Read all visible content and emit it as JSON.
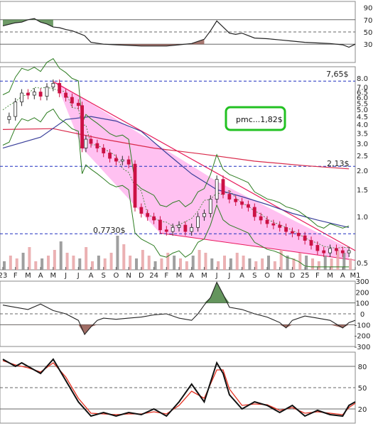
{
  "chart_data": [
    {
      "type": "line",
      "panel": "top-oscillator",
      "y_ticks": [
        "90",
        "70",
        "50",
        "30"
      ],
      "ylim": [
        0,
        100
      ],
      "levels": [
        70,
        50,
        30
      ],
      "grid": true,
      "series": [
        {
          "values": [
            [
              0,
              60
            ],
            [
              1,
              65
            ],
            [
              1.5,
              66
            ],
            [
              2,
              70
            ],
            [
              2.5,
              72
            ],
            [
              3,
              66
            ],
            [
              3.5,
              63
            ],
            [
              4,
              58
            ],
            [
              4.5,
              57
            ],
            [
              5,
              54
            ],
            [
              5.5,
              52
            ],
            [
              6,
              48
            ],
            [
              6.5,
              44
            ],
            [
              7,
              33
            ],
            [
              8,
              30
            ],
            [
              9,
              29
            ],
            [
              10,
              28
            ],
            [
              11,
              27
            ],
            [
              12,
              27
            ],
            [
              13,
              27
            ],
            [
              14,
              29
            ],
            [
              15,
              31
            ],
            [
              16,
              38
            ],
            [
              16.5,
              52
            ],
            [
              17,
              68
            ],
            [
              17.5,
              58
            ],
            [
              18,
              48
            ],
            [
              18.5,
              46
            ],
            [
              19,
              48
            ],
            [
              20,
              40
            ],
            [
              21,
              39
            ],
            [
              22,
              37
            ],
            [
              23,
              35
            ],
            [
              24,
              33
            ],
            [
              25,
              32
            ],
            [
              26,
              31
            ],
            [
              27,
              29
            ],
            [
              27.5,
              25
            ],
            [
              28,
              30
            ]
          ]
        }
      ]
    },
    {
      "type": "candlestick",
      "panel": "price",
      "y_scale": "log",
      "y_ticks": [
        "8.0",
        "7.0",
        "6.5",
        "6.0",
        "5.5",
        "5.0",
        "4.5",
        "4.0",
        "3.5",
        "3.0",
        "2.5",
        "2.0",
        "1.5",
        "1.0",
        "0.5"
      ],
      "ylim": [
        0.45,
        9.5
      ],
      "x_ticks": [
        "23",
        "F",
        "M",
        "A",
        "M",
        "J",
        "J",
        "A",
        "S",
        "O",
        "N",
        "D",
        "24",
        "F",
        "M",
        "A",
        "M",
        "J",
        "J",
        "A",
        "S",
        "O",
        "N",
        "D",
        "25",
        "F",
        "M",
        "A",
        "M1"
      ],
      "annotations": {
        "high_label": "7,65$",
        "high_value": 7.65,
        "level_label": "2,13$",
        "level_value": 2.13,
        "low_label": "0,7730$",
        "low_value": 0.773,
        "box_label": "pmc...1,82$"
      },
      "colors": {
        "up": "#2a2a2a",
        "down": "#cc1144",
        "channel_fill": "#ffb6ee",
        "trendline": "#e8195a",
        "level_line": "#1f2fbf",
        "ma_long": "#d9294a",
        "ma_mid": "#3a3f9a",
        "band": "#2e7d22",
        "box_border": "#22c122"
      },
      "series": [
        {
          "name": "close",
          "values": [
            [
              0,
              4.3
            ],
            [
              0.5,
              4.5
            ],
            [
              1,
              5.6
            ],
            [
              1.5,
              6.4
            ],
            [
              2,
              6.2
            ],
            [
              2.5,
              6.5
            ],
            [
              3,
              6.1
            ],
            [
              3.5,
              7.0
            ],
            [
              4,
              7.4
            ],
            [
              4.5,
              6.4
            ],
            [
              5,
              6.0
            ],
            [
              5.5,
              5.5
            ],
            [
              6,
              5.3
            ],
            [
              6.3,
              2.8
            ],
            [
              6.6,
              3.2
            ],
            [
              7,
              3.0
            ],
            [
              7.5,
              2.8
            ],
            [
              8,
              2.6
            ],
            [
              8.5,
              2.4
            ],
            [
              9,
              2.3
            ],
            [
              9.5,
              2.35
            ],
            [
              10,
              2.2
            ],
            [
              10.5,
              1.15
            ],
            [
              11,
              1.05
            ],
            [
              11.5,
              1.0
            ],
            [
              12,
              0.95
            ],
            [
              12.5,
              0.82
            ],
            [
              13,
              0.8
            ],
            [
              13.5,
              0.85
            ],
            [
              14,
              0.88
            ],
            [
              14.5,
              0.8
            ],
            [
              15,
              0.85
            ],
            [
              15.5,
              1.0
            ],
            [
              16,
              1.05
            ],
            [
              16.5,
              1.3
            ],
            [
              17,
              1.75
            ],
            [
              17.5,
              1.4
            ],
            [
              18,
              1.3
            ],
            [
              18.5,
              1.25
            ],
            [
              19,
              1.2
            ],
            [
              19.5,
              1.15
            ],
            [
              20,
              1.0
            ],
            [
              20.5,
              0.95
            ],
            [
              21,
              0.9
            ],
            [
              21.5,
              0.88
            ],
            [
              22,
              0.85
            ],
            [
              22.5,
              0.8
            ],
            [
              23,
              0.78
            ],
            [
              23.5,
              0.75
            ],
            [
              24,
              0.7
            ],
            [
              24.5,
              0.65
            ],
            [
              25,
              0.6
            ],
            [
              25.5,
              0.58
            ],
            [
              26,
              0.62
            ],
            [
              26.5,
              0.6
            ],
            [
              27,
              0.58
            ],
            [
              27.5,
              0.6
            ]
          ]
        },
        {
          "name": "ma_long",
          "values": [
            [
              0,
              3.7
            ],
            [
              4,
              3.75
            ],
            [
              8,
              3.2
            ],
            [
              12,
              2.8
            ],
            [
              16,
              2.55
            ],
            [
              20,
              2.3
            ],
            [
              24,
              2.15
            ],
            [
              27.5,
              2.05
            ]
          ]
        },
        {
          "name": "ma_mid",
          "values": [
            [
              0,
              2.8
            ],
            [
              3,
              3.3
            ],
            [
              5,
              4.3
            ],
            [
              7,
              4.5
            ],
            [
              9,
              4.2
            ],
            [
              11,
              3.6
            ],
            [
              13,
              2.6
            ],
            [
              15,
              1.9
            ],
            [
              17,
              1.5
            ],
            [
              19,
              1.35
            ],
            [
              21,
              1.2
            ],
            [
              23,
              1.05
            ],
            [
              25,
              0.95
            ],
            [
              27.5,
              0.85
            ]
          ]
        }
      ],
      "volume": [
        3,
        5,
        4,
        6,
        8,
        3,
        4,
        5,
        7,
        10,
        6,
        5,
        4,
        8,
        3,
        5,
        4,
        6,
        12,
        9,
        5,
        4,
        7,
        5,
        3,
        4,
        6,
        5,
        4,
        3,
        5,
        7,
        6,
        4,
        3,
        5,
        4,
        6,
        5,
        4,
        3,
        4,
        5,
        3,
        7,
        5,
        4,
        6,
        5,
        4,
        3,
        5,
        4,
        7,
        6,
        4
      ]
    },
    {
      "type": "area",
      "panel": "momentum",
      "y_ticks": [
        "300",
        "200",
        "100",
        "0",
        "-100",
        "-200",
        "-300"
      ],
      "ylim": [
        -300,
        300
      ],
      "levels": [
        100,
        0,
        -100
      ],
      "series": [
        {
          "values": [
            [
              0,
              80
            ],
            [
              1,
              60
            ],
            [
              2,
              40
            ],
            [
              3,
              90
            ],
            [
              4,
              30
            ],
            [
              5,
              0
            ],
            [
              6,
              -60
            ],
            [
              6.5,
              -190
            ],
            [
              7,
              -120
            ],
            [
              7.5,
              -60
            ],
            [
              8,
              -40
            ],
            [
              9,
              -50
            ],
            [
              10,
              -40
            ],
            [
              11,
              -30
            ],
            [
              12,
              -10
            ],
            [
              13,
              0
            ],
            [
              14,
              -40
            ],
            [
              15,
              -60
            ],
            [
              15.5,
              0
            ],
            [
              16,
              80
            ],
            [
              16.5,
              150
            ],
            [
              17,
              290
            ],
            [
              17.5,
              180
            ],
            [
              18,
              60
            ],
            [
              19,
              40
            ],
            [
              20,
              0
            ],
            [
              21,
              -30
            ],
            [
              22,
              -80
            ],
            [
              22.5,
              -130
            ],
            [
              23,
              -60
            ],
            [
              24,
              -20
            ],
            [
              25,
              -40
            ],
            [
              26,
              -60
            ],
            [
              27,
              -130
            ],
            [
              27.5,
              -80
            ],
            [
              28,
              -60
            ]
          ]
        }
      ]
    },
    {
      "type": "line",
      "panel": "stochastic",
      "y_ticks": [
        "80",
        "50",
        "20"
      ],
      "ylim": [
        0,
        100
      ],
      "levels": [
        80,
        50,
        20
      ],
      "series": [
        {
          "name": "k",
          "values": [
            [
              0,
              90
            ],
            [
              1,
              80
            ],
            [
              1.5,
              85
            ],
            [
              2,
              80
            ],
            [
              3,
              70
            ],
            [
              4,
              90
            ],
            [
              5,
              60
            ],
            [
              6,
              30
            ],
            [
              7,
              10
            ],
            [
              8,
              15
            ],
            [
              9,
              10
            ],
            [
              10,
              15
            ],
            [
              11,
              12
            ],
            [
              12,
              20
            ],
            [
              13,
              10
            ],
            [
              14,
              30
            ],
            [
              15,
              55
            ],
            [
              16,
              30
            ],
            [
              17,
              85
            ],
            [
              17.5,
              70
            ],
            [
              18,
              40
            ],
            [
              19,
              20
            ],
            [
              20,
              30
            ],
            [
              21,
              25
            ],
            [
              22,
              15
            ],
            [
              23,
              25
            ],
            [
              24,
              10
            ],
            [
              25,
              18
            ],
            [
              26,
              12
            ],
            [
              27,
              10
            ],
            [
              27.5,
              25
            ],
            [
              28,
              30
            ]
          ]
        },
        {
          "name": "d",
          "values": [
            [
              0,
              88
            ],
            [
              1,
              82
            ],
            [
              2,
              78
            ],
            [
              3,
              72
            ],
            [
              4,
              85
            ],
            [
              5,
              65
            ],
            [
              6,
              35
            ],
            [
              7,
              14
            ],
            [
              8,
              13
            ],
            [
              9,
              12
            ],
            [
              10,
              13
            ],
            [
              11,
              13
            ],
            [
              12,
              16
            ],
            [
              13,
              13
            ],
            [
              14,
              25
            ],
            [
              15,
              45
            ],
            [
              16,
              35
            ],
            [
              17,
              75
            ],
            [
              17.5,
              75
            ],
            [
              18,
              48
            ],
            [
              19,
              25
            ],
            [
              20,
              27
            ],
            [
              21,
              26
            ],
            [
              22,
              18
            ],
            [
              23,
              22
            ],
            [
              24,
              14
            ],
            [
              25,
              16
            ],
            [
              26,
              14
            ],
            [
              27,
              12
            ],
            [
              27.5,
              22
            ],
            [
              28,
              28
            ]
          ]
        }
      ]
    }
  ]
}
